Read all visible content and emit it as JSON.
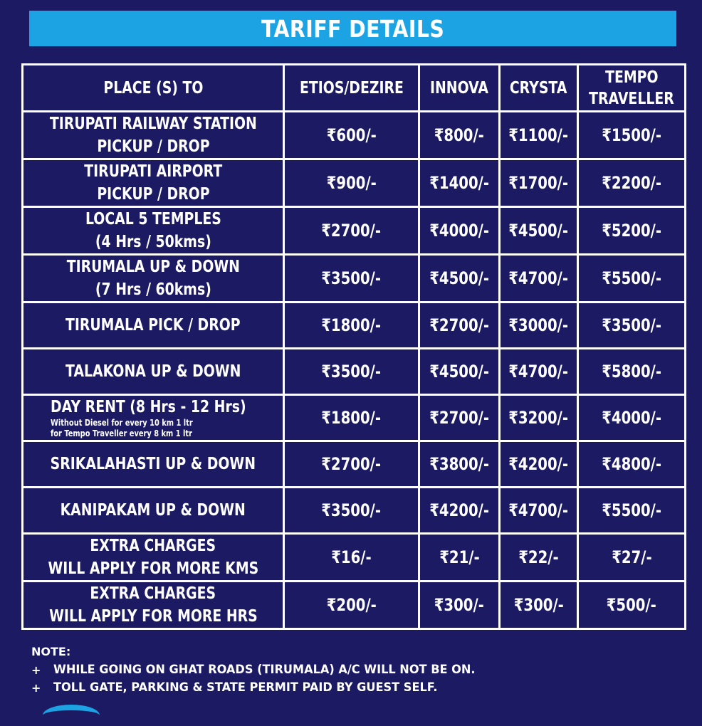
{
  "header": {
    "title": "TARIFF DETAILS"
  },
  "table": {
    "columns": [
      "PLACE (S) TO",
      "ETIOS/DEZIRE",
      "INNOVA",
      "CRYSTA",
      "TEMPO TRAVELLER"
    ],
    "column_5_lines": [
      "TEMPO",
      "TRAVELLER"
    ],
    "rows": [
      {
        "place_lines": [
          "TIRUPATI RAILWAY STATION",
          "PICKUP / DROP"
        ],
        "prices": [
          "₹600/-",
          "₹800/-",
          "₹1100/-",
          "₹1500/-"
        ]
      },
      {
        "place_lines": [
          "TIRUPATI AIRPORT",
          "PICKUP / DROP"
        ],
        "prices": [
          "₹900/-",
          "₹1400/-",
          "₹1700/-",
          "₹2200/-"
        ]
      },
      {
        "place_lines": [
          "LOCAL 5 TEMPLES",
          "(4 Hrs / 50kms)"
        ],
        "prices": [
          "₹2700/-",
          "₹4000/-",
          "₹4500/-",
          "₹5200/-"
        ]
      },
      {
        "place_lines": [
          "TIRUMALA UP & DOWN",
          "(7 Hrs / 60kms)"
        ],
        "prices": [
          "₹3500/-",
          "₹4500/-",
          "₹4700/-",
          "₹5500/-"
        ]
      },
      {
        "place_lines": [
          "TIRUMALA PICK / DROP"
        ],
        "prices": [
          "₹1800/-",
          "₹2700/-",
          "₹3000/-",
          "₹3500/-"
        ]
      },
      {
        "place_lines": [
          "TALAKONA UP & DOWN"
        ],
        "prices": [
          "₹3500/-",
          "₹4500/-",
          "₹4700/-",
          "₹5800/-"
        ]
      },
      {
        "place_lines": [
          "DAY RENT (8 Hrs - 12 Hrs)"
        ],
        "place_notes": [
          "Without Diesel for every 10 km 1 ltr",
          "for Tempo Traveller every 8 km 1 ltr"
        ],
        "prices": [
          "₹1800/-",
          "₹2700/-",
          "₹3200/-",
          "₹4000/-"
        ]
      },
      {
        "place_lines": [
          "SRIKALAHASTI UP & DOWN"
        ],
        "prices": [
          "₹2700/-",
          "₹3800/-",
          "₹4200/-",
          "₹4800/-"
        ]
      },
      {
        "place_lines": [
          "KANIPAKAM UP & DOWN"
        ],
        "prices": [
          "₹3500/-",
          "₹4200/-",
          "₹4700/-",
          "₹5500/-"
        ]
      },
      {
        "place_lines": [
          "EXTRA CHARGES",
          "WILL APPLY FOR MORE KMS"
        ],
        "prices": [
          "₹16/-",
          "₹21/-",
          "₹22/-",
          "₹27/-"
        ]
      },
      {
        "place_lines": [
          "EXTRA CHARGES",
          "WILL APPLY FOR MORE HRS"
        ],
        "prices": [
          "₹200/-",
          "₹300/-",
          "₹300/-",
          "₹500/-"
        ]
      }
    ]
  },
  "notes": {
    "label": "NOTE:",
    "items": [
      "WHILE GOING ON GHAT ROADS (TIRUMALA) A/C WILL NOT BE ON.",
      "TOLL GATE, PARKING & STATE PERMIT PAID BY GUEST SELF."
    ],
    "bullet": "+"
  },
  "colors": {
    "background": "#1b1a63",
    "title_bar": "#1ca3e4",
    "text": "#ffffff",
    "border": "#ffffff"
  }
}
